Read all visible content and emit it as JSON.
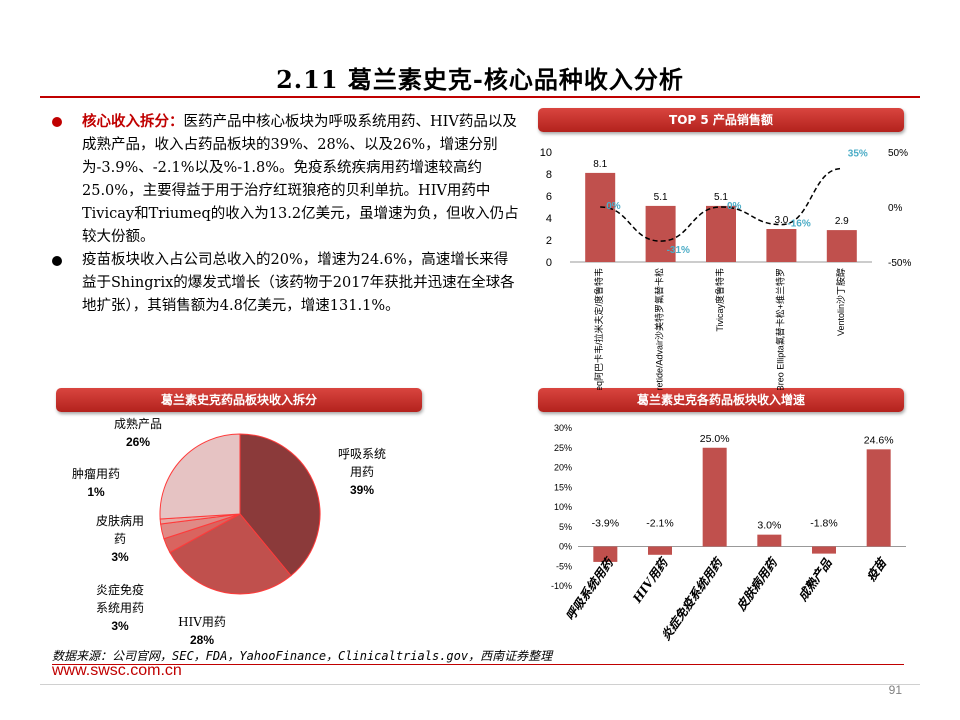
{
  "header": {
    "title": "2.11 葛兰素史克-核心品种收入分析"
  },
  "bullets": [
    {
      "highlight": "核心收入拆分：",
      "text": "医药产品中核心板块为呼吸系统用药、HIV药品以及成熟产品，收入占药品板块的39%、28%、以及26%，增速分别为-3.9%、-2.1%以及%-1.8%。免疫系统疾病用药增速较高约25.0%，主要得益于用于治疗红斑狼疮的贝利单抗。HIV用药中Tivicay和Triumeq的收入为13.2亿美元，虽增速为负，但收入仍占较大份额。"
    },
    {
      "highlight": "",
      "text": "疫苗板块收入占公司总收入的20%，增速为24.6%，高速增长来得益于Shingrix的爆发式增长（该药物于2017年获批并迅速在全球各地扩张），其销售额为4.8亿美元，增速131.1%。"
    }
  ],
  "panels": {
    "top5_title": "TOP 5 产品销售额",
    "pie_title": "葛兰素史克药品板块收入拆分",
    "growth_title": "葛兰素史克各药品板块收入增速"
  },
  "chart_data": [
    {
      "type": "bar",
      "title": "TOP 5 产品销售额",
      "categories": [
        "Triumeq阿巴卡韦/拉米夫定/度鲁特韦",
        "Seretide/Advair沙美特罗氟替卡松",
        "Tivicay度鲁特韦",
        "Breo Ellipta氟替卡松+维兰特罗",
        "Ventolin沙丁胺醇"
      ],
      "values": [
        8.1,
        5.1,
        5.1,
        3.0,
        2.9
      ],
      "value_labels": [
        "8.1",
        "5.1",
        "5.1",
        "3.0",
        "2.9"
      ],
      "ylim": [
        0,
        10
      ],
      "yticks": [
        "0",
        "2",
        "4",
        "6",
        "8",
        "10"
      ],
      "secondary": {
        "type": "line",
        "name": "增速",
        "values": [
          0,
          -31,
          0,
          -16,
          35
        ],
        "labels": [
          "0%",
          "-31%",
          "0%",
          "-16%",
          "35%"
        ],
        "ylim": [
          -50,
          50
        ],
        "ticks": [
          "-50%",
          "0%",
          "50%"
        ]
      },
      "colors": {
        "bar": "#c0504d",
        "line": "#000000",
        "line_label": "#4bacc6"
      }
    },
    {
      "type": "pie",
      "title": "葛兰素史克药品板块收入拆分",
      "slices": [
        {
          "label": "呼吸系统用药",
          "value": 39,
          "pct": "39%",
          "color": "#8b3a3a"
        },
        {
          "label": "HIV用药",
          "value": 28,
          "pct": "28%",
          "color": "#c0504d"
        },
        {
          "label": "炎症免疫系统用药",
          "value": 3,
          "pct": "3%",
          "color": "#d9645f"
        },
        {
          "label": "皮肤病用药",
          "value": 3,
          "pct": "3%",
          "color": "#e08a86"
        },
        {
          "label": "肿瘤用药",
          "value": 1,
          "pct": "1%",
          "color": "#e6a9a5"
        },
        {
          "label": "成熟产品",
          "value": 26,
          "pct": "26%",
          "color": "#e6c3c3"
        }
      ],
      "display_labels": [
        {
          "lines": [
            "呼吸系统",
            "用药"
          ],
          "pct": "39%"
        },
        {
          "lines": [
            "HIV用药"
          ],
          "pct": "28%"
        },
        {
          "lines": [
            "炎症免疫",
            "系统用药"
          ],
          "pct": "3%"
        },
        {
          "lines": [
            "皮肤病用",
            "药"
          ],
          "pct": "3%"
        },
        {
          "lines": [
            "肿瘤用药"
          ],
          "pct": "1%"
        },
        {
          "lines": [
            "成熟产品"
          ],
          "pct": "26%"
        }
      ]
    },
    {
      "type": "bar",
      "title": "葛兰素史克各药品板块收入增速",
      "categories": [
        "呼吸系统用药",
        "HIV用药",
        "炎症免疫系统用药",
        "皮肤病用药",
        "成熟产品",
        "疫苗"
      ],
      "values": [
        -3.9,
        -2.1,
        25.0,
        3.0,
        -1.8,
        24.6
      ],
      "value_labels": [
        "-3.9%",
        "-2.1%",
        "25.0%",
        "3.0%",
        "-1.8%",
        "24.6%"
      ],
      "ylim": [
        -10,
        30
      ],
      "yticks": [
        "-10%",
        "-5%",
        "0%",
        "5%",
        "10%",
        "15%",
        "20%",
        "25%",
        "30%"
      ],
      "colors": {
        "bar": "#c0504d"
      }
    }
  ],
  "footer": {
    "source": "数据来源：公司官网，SEC，FDA，YahooFinance，Clinicaltrials.gov，西南证券整理",
    "website": "www.swsc.com.cn",
    "page": "91"
  }
}
